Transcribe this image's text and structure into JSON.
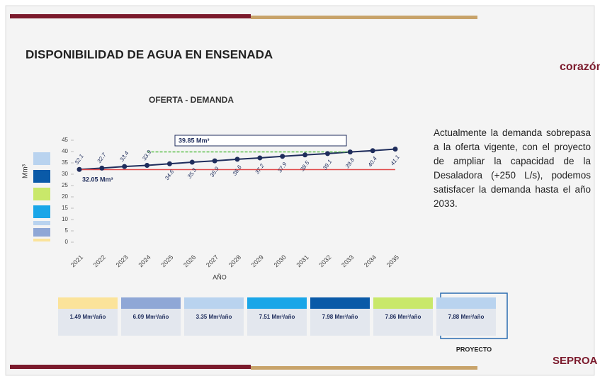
{
  "slide": {
    "title": "DISPONIBILIDAD DE AGUA EN ENSENADA",
    "logo_top": "corazón",
    "logo_bottom": "SEPROA"
  },
  "chart_data": {
    "type": "line",
    "title": "OFERTA - DEMANDA",
    "y_label": "Mm³",
    "x_label": "AÑO",
    "categories": [
      "2021",
      "2022",
      "2023",
      "2024",
      "2025",
      "2026",
      "2027",
      "2028",
      "2029",
      "2030",
      "2031",
      "2032",
      "2033",
      "2034",
      "2035"
    ],
    "series": [
      {
        "color": "#1f2d5c",
        "values": [
          32.1,
          32.7,
          33.4,
          33.9,
          34.6,
          35.3,
          35.9,
          36.6,
          37.2,
          37.9,
          38.5,
          39.1,
          39.8,
          40.4,
          41.1
        ]
      },
      {
        "color": "#e04a4a",
        "values": [
          32.05,
          32.05,
          32.05,
          32.05,
          32.05,
          32.05,
          32.05,
          32.05,
          32.05,
          32.05,
          32.05,
          32.05,
          32.05,
          32.05,
          32.05
        ]
      },
      {
        "color": "#5bbf4a",
        "values": [
          null,
          null,
          null,
          39.85,
          39.85,
          39.85,
          39.85,
          39.85,
          39.85,
          39.85,
          39.85,
          39.85,
          39.85,
          null,
          null
        ]
      }
    ],
    "ylim": [
      0,
      45
    ],
    "yticks": [
      0,
      5,
      10,
      15,
      20,
      25,
      30,
      35,
      40,
      45
    ],
    "annotations": [
      "39.85 Mm³",
      "32.05 Mm³"
    ]
  },
  "description": "Actualmente la demanda sobrepasa a la oferta vigente, con el proyecto de ampliar la capacidad de la Desaladora (+250 L/s), podemos satisfacer la demanda hasta el año 2033.",
  "sources": [
    {
      "value": "1.49 Mm³/año",
      "color": "#fbe39a"
    },
    {
      "value": "6.09 Mm³/año",
      "color": "#8fa7d6"
    },
    {
      "value": "3.35 Mm³/año",
      "color": "#b9d3ef"
    },
    {
      "value": "7.51 Mm³/año",
      "color": "#1aa6e8"
    },
    {
      "value": "7.98 Mm³/año",
      "color": "#0a5aa8"
    },
    {
      "value": "7.86 Mm³/año",
      "color": "#c9e86a"
    },
    {
      "value": "7.88 Mm³/año",
      "color": "#b9d3ef"
    }
  ],
  "project_label": "PROYECTO"
}
